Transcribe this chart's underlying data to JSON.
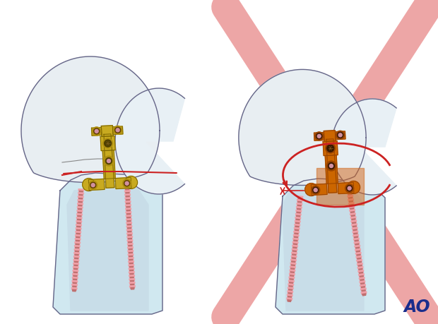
{
  "bg_color": "#ffffff",
  "bone_head_fill": "#e8eef2",
  "bone_head_fill2": "#d8e8f0",
  "bone_shaft_fill": "#d0e8f0",
  "bone_stroke": "#666688",
  "plate_gold": "#c8aa20",
  "plate_gold_mid": "#b09010",
  "plate_gold_dark": "#806800",
  "plate_orange": "#cc6600",
  "plate_orange_dark": "#994400",
  "screw_pink": "#f0a0a8",
  "screw_dark": "#c07070",
  "screw_thread": "#e07878",
  "red_line": "#cc2222",
  "red_x_color": "#e88888",
  "red_circle": "#cc2222",
  "ao_color": "#1a2d8c",
  "figsize": [
    6.2,
    4.59
  ],
  "dpi": 100
}
